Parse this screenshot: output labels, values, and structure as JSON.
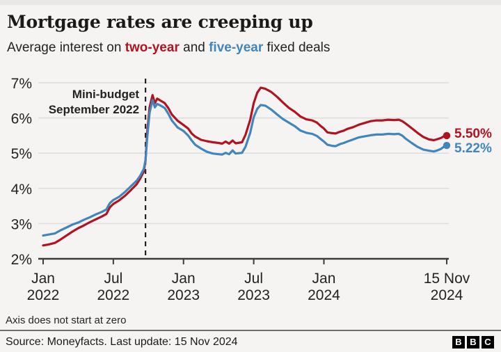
{
  "header": {
    "title": "Mortgage rates are creeping up",
    "subtitle": {
      "prefix": "Average interest on ",
      "two_year": "two-year",
      "mid": " and ",
      "five_year": "five-year",
      "suffix": " fixed deals"
    }
  },
  "colors": {
    "two_year": "#b01322",
    "five_year": "#4285bb",
    "grid": "#dcdcdc",
    "axis": "#3b3b3b",
    "text": "#222222",
    "annotation": "#222222"
  },
  "chart_data": {
    "type": "line",
    "title": "Mortgage rates are creeping up",
    "subtitle": "Average interest on two-year and five-year fixed deals",
    "xlabel": "",
    "ylabel": "",
    "unit": "percent",
    "ylim": [
      2,
      7
    ],
    "grid": true,
    "footnote": "Axis does not start at zero",
    "yticks": [
      {
        "value": 2,
        "label": "2%"
      },
      {
        "value": 3,
        "label": "3%"
      },
      {
        "value": 4,
        "label": "4%"
      },
      {
        "value": 5,
        "label": "5%"
      },
      {
        "value": 6,
        "label": "6%"
      },
      {
        "value": 7,
        "label": "7%"
      }
    ],
    "x_range_months": [
      0,
      34.5
    ],
    "xticks": [
      {
        "month": 0,
        "line1": "Jan",
        "line2": "2022"
      },
      {
        "month": 6,
        "line1": "Jul",
        "line2": "2022"
      },
      {
        "month": 12,
        "line1": "Jan",
        "line2": "2023"
      },
      {
        "month": 18,
        "line1": "Jul",
        "line2": "2023"
      },
      {
        "month": 24,
        "line1": "Jan",
        "line2": "2024"
      },
      {
        "month": 34.5,
        "line1": "15 Nov",
        "line2": "2024"
      }
    ],
    "annotation": {
      "line1": "Mini-budget",
      "line2": "September 2022",
      "month": 8.75
    },
    "series": [
      {
        "name": "two-year",
        "color": "#b01322",
        "end_label": "5.50%",
        "end_value": 5.5,
        "points": [
          [
            0,
            2.38
          ],
          [
            0.5,
            2.41
          ],
          [
            1,
            2.45
          ],
          [
            1.5,
            2.55
          ],
          [
            2,
            2.66
          ],
          [
            2.5,
            2.77
          ],
          [
            3,
            2.87
          ],
          [
            3.5,
            2.95
          ],
          [
            4,
            3.04
          ],
          [
            4.5,
            3.12
          ],
          [
            5,
            3.2
          ],
          [
            5.4,
            3.27
          ],
          [
            5.7,
            3.46
          ],
          [
            6,
            3.56
          ],
          [
            6.5,
            3.66
          ],
          [
            7,
            3.79
          ],
          [
            7.5,
            3.95
          ],
          [
            8,
            4.12
          ],
          [
            8.3,
            4.28
          ],
          [
            8.6,
            4.48
          ],
          [
            8.75,
            4.78
          ],
          [
            8.9,
            5.6
          ],
          [
            9.1,
            6.3
          ],
          [
            9.35,
            6.65
          ],
          [
            9.55,
            6.42
          ],
          [
            9.75,
            6.55
          ],
          [
            10,
            6.5
          ],
          [
            10.4,
            6.42
          ],
          [
            10.7,
            6.28
          ],
          [
            11,
            6.1
          ],
          [
            11.5,
            5.92
          ],
          [
            12,
            5.8
          ],
          [
            12.4,
            5.7
          ],
          [
            12.7,
            5.56
          ],
          [
            13,
            5.47
          ],
          [
            13.5,
            5.38
          ],
          [
            14,
            5.34
          ],
          [
            14.5,
            5.31
          ],
          [
            15,
            5.29
          ],
          [
            15.3,
            5.27
          ],
          [
            15.6,
            5.33
          ],
          [
            15.9,
            5.27
          ],
          [
            16.2,
            5.36
          ],
          [
            16.45,
            5.28
          ],
          [
            17,
            5.31
          ],
          [
            17.3,
            5.52
          ],
          [
            17.7,
            5.95
          ],
          [
            18,
            6.42
          ],
          [
            18.3,
            6.72
          ],
          [
            18.6,
            6.86
          ],
          [
            19,
            6.83
          ],
          [
            19.5,
            6.74
          ],
          [
            20,
            6.6
          ],
          [
            20.5,
            6.44
          ],
          [
            21,
            6.29
          ],
          [
            21.5,
            6.18
          ],
          [
            22,
            6.04
          ],
          [
            22.5,
            5.96
          ],
          [
            23,
            5.93
          ],
          [
            23.4,
            5.87
          ],
          [
            23.7,
            5.78
          ],
          [
            24,
            5.7
          ],
          [
            24.3,
            5.59
          ],
          [
            24.7,
            5.57
          ],
          [
            25,
            5.56
          ],
          [
            25.4,
            5.61
          ],
          [
            25.7,
            5.64
          ],
          [
            26,
            5.69
          ],
          [
            26.5,
            5.74
          ],
          [
            27,
            5.81
          ],
          [
            27.5,
            5.86
          ],
          [
            28,
            5.91
          ],
          [
            28.5,
            5.93
          ],
          [
            29,
            5.93
          ],
          [
            29.5,
            5.95
          ],
          [
            30,
            5.94
          ],
          [
            30.4,
            5.95
          ],
          [
            30.7,
            5.91
          ],
          [
            31,
            5.84
          ],
          [
            31.5,
            5.71
          ],
          [
            32,
            5.58
          ],
          [
            32.5,
            5.46
          ],
          [
            33,
            5.39
          ],
          [
            33.4,
            5.37
          ],
          [
            33.7,
            5.4
          ],
          [
            34,
            5.43
          ],
          [
            34.2,
            5.47
          ],
          [
            34.5,
            5.5
          ]
        ]
      },
      {
        "name": "five-year",
        "color": "#4285bb",
        "end_label": "5.22%",
        "end_value": 5.22,
        "points": [
          [
            0,
            2.66
          ],
          [
            0.5,
            2.69
          ],
          [
            1,
            2.72
          ],
          [
            1.5,
            2.81
          ],
          [
            2,
            2.89
          ],
          [
            2.5,
            2.97
          ],
          [
            3,
            3.03
          ],
          [
            3.5,
            3.11
          ],
          [
            4,
            3.18
          ],
          [
            4.5,
            3.26
          ],
          [
            5,
            3.33
          ],
          [
            5.4,
            3.4
          ],
          [
            5.7,
            3.58
          ],
          [
            6,
            3.67
          ],
          [
            6.5,
            3.76
          ],
          [
            7,
            3.9
          ],
          [
            7.5,
            4.06
          ],
          [
            8,
            4.22
          ],
          [
            8.3,
            4.36
          ],
          [
            8.6,
            4.55
          ],
          [
            8.75,
            4.8
          ],
          [
            8.9,
            5.45
          ],
          [
            9.1,
            6.15
          ],
          [
            9.35,
            6.51
          ],
          [
            9.55,
            6.3
          ],
          [
            9.75,
            6.4
          ],
          [
            10,
            6.36
          ],
          [
            10.4,
            6.28
          ],
          [
            10.7,
            6.12
          ],
          [
            11,
            5.93
          ],
          [
            11.5,
            5.73
          ],
          [
            12,
            5.63
          ],
          [
            12.4,
            5.5
          ],
          [
            12.7,
            5.36
          ],
          [
            13,
            5.24
          ],
          [
            13.5,
            5.13
          ],
          [
            14,
            5.04
          ],
          [
            14.5,
            4.99
          ],
          [
            15,
            4.97
          ],
          [
            15.3,
            4.96
          ],
          [
            15.6,
            5.01
          ],
          [
            15.9,
            4.97
          ],
          [
            16.2,
            5.08
          ],
          [
            16.45,
            4.99
          ],
          [
            17,
            5.01
          ],
          [
            17.3,
            5.18
          ],
          [
            17.7,
            5.58
          ],
          [
            18,
            6.02
          ],
          [
            18.3,
            6.26
          ],
          [
            18.6,
            6.37
          ],
          [
            19,
            6.35
          ],
          [
            19.5,
            6.24
          ],
          [
            20,
            6.1
          ],
          [
            20.5,
            5.97
          ],
          [
            21,
            5.87
          ],
          [
            21.5,
            5.77
          ],
          [
            22,
            5.64
          ],
          [
            22.5,
            5.58
          ],
          [
            23,
            5.55
          ],
          [
            23.4,
            5.49
          ],
          [
            23.7,
            5.41
          ],
          [
            24,
            5.33
          ],
          [
            24.3,
            5.24
          ],
          [
            24.7,
            5.21
          ],
          [
            25,
            5.2
          ],
          [
            25.4,
            5.26
          ],
          [
            25.7,
            5.29
          ],
          [
            26,
            5.33
          ],
          [
            26.5,
            5.39
          ],
          [
            27,
            5.45
          ],
          [
            27.5,
            5.48
          ],
          [
            28,
            5.51
          ],
          [
            28.5,
            5.53
          ],
          [
            29,
            5.53
          ],
          [
            29.5,
            5.55
          ],
          [
            30,
            5.54
          ],
          [
            30.4,
            5.55
          ],
          [
            30.7,
            5.5
          ],
          [
            31,
            5.41
          ],
          [
            31.5,
            5.29
          ],
          [
            32,
            5.18
          ],
          [
            32.5,
            5.1
          ],
          [
            33,
            5.07
          ],
          [
            33.4,
            5.05
          ],
          [
            33.7,
            5.08
          ],
          [
            34,
            5.12
          ],
          [
            34.2,
            5.17
          ],
          [
            34.5,
            5.22
          ]
        ]
      }
    ]
  },
  "footer": {
    "footnote": "Axis does not start at zero",
    "source": "Source: Moneyfacts. Last update: 15 Nov 2024",
    "logo": [
      "B",
      "B",
      "C"
    ]
  }
}
